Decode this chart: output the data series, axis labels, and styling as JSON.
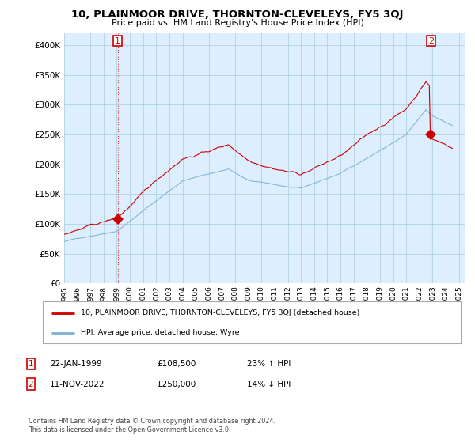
{
  "title": "10, PLAINMOOR DRIVE, THORNTON-CLEVELEYS, FY5 3QJ",
  "subtitle": "Price paid vs. HM Land Registry's House Price Index (HPI)",
  "ytick_values": [
    0,
    50000,
    100000,
    150000,
    200000,
    250000,
    300000,
    350000,
    400000
  ],
  "ylim": [
    0,
    420000
  ],
  "sale1_date": 1999.07,
  "sale1_price": 108500,
  "sale2_date": 2022.87,
  "sale2_price": 250000,
  "legend_line1": "10, PLAINMOOR DRIVE, THORNTON-CLEVELEYS, FY5 3QJ (detached house)",
  "legend_line2": "HPI: Average price, detached house, Wyre",
  "table_row1": [
    "1",
    "22-JAN-1999",
    "£108,500",
    "23% ↑ HPI"
  ],
  "table_row2": [
    "2",
    "11-NOV-2022",
    "£250,000",
    "14% ↓ HPI"
  ],
  "footnote": "Contains HM Land Registry data © Crown copyright and database right 2024.\nThis data is licensed under the Open Government Licence v3.0.",
  "line_color_red": "#cc0000",
  "line_color_blue": "#7ab0d4",
  "background_color": "#ffffff",
  "chart_bg_color": "#ddeeff",
  "grid_color": "#aaccdd",
  "xlim": [
    1995.0,
    2025.5
  ],
  "xticks": [
    1995,
    1996,
    1997,
    1998,
    1999,
    2000,
    2001,
    2002,
    2003,
    2004,
    2005,
    2006,
    2007,
    2008,
    2009,
    2010,
    2011,
    2012,
    2013,
    2014,
    2015,
    2016,
    2017,
    2018,
    2019,
    2020,
    2021,
    2022,
    2023,
    2024,
    2025
  ]
}
